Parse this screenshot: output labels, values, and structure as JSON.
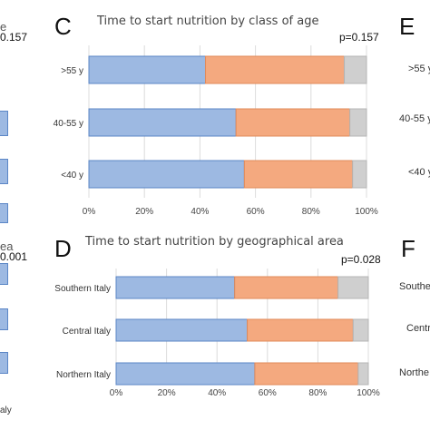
{
  "colors": {
    "blue": "#9db9e2",
    "orange": "#f4a97f",
    "gray": "#cfcfcf",
    "border": "#5b86c6",
    "grid": "#dcdcdc"
  },
  "left_edge": {
    "pvalue_top": "0.157",
    "title_top_fragment": "e",
    "title_bottom_fragment": "ea",
    "pvalue_bottom": "0.001",
    "axis_fragment": "aly"
  },
  "right_edge": {
    "letter_e": "E",
    "letter_f": "F",
    "labels_top": [
      ">55 y",
      "40-55 y",
      "<40 y"
    ],
    "labels_bottom": [
      "Southe",
      "Centr",
      "Northe"
    ]
  },
  "panel_c": {
    "letter": "C",
    "title": "Time to start nutrition by class of age",
    "pvalue": "p=0.157"
  },
  "panel_d": {
    "letter": "D",
    "title": "Time to start nutrition by geographical area",
    "pvalue": "p=0.028"
  },
  "chart_data": [
    {
      "type": "bar",
      "orientation": "horizontal-stacked",
      "title": "Time to start nutrition by class of age",
      "categories": [
        ">55 y",
        "40-55 y",
        "<40 y"
      ],
      "series": [
        {
          "values": [
            42,
            53,
            56
          ]
        },
        {
          "values": [
            50,
            41,
            39
          ]
        },
        {
          "values": [
            8,
            6,
            5
          ]
        }
      ],
      "xlim": [
        0,
        100
      ],
      "xticks": [
        "0%",
        "20%",
        "40%",
        "60%",
        "80%",
        "100%"
      ],
      "grid": true
    },
    {
      "type": "bar",
      "orientation": "horizontal-stacked",
      "title": "Time to start nutrition by geographical area",
      "categories": [
        "Southern Italy",
        "Central Italy",
        "Northern Italy"
      ],
      "series": [
        {
          "values": [
            47,
            52,
            55
          ]
        },
        {
          "values": [
            41,
            42,
            41
          ]
        },
        {
          "values": [
            12,
            6,
            4
          ]
        }
      ],
      "xlim": [
        0,
        100
      ],
      "xticks": [
        "0%",
        "20%",
        "40%",
        "60%",
        "80%",
        "100%"
      ],
      "grid": true
    }
  ]
}
